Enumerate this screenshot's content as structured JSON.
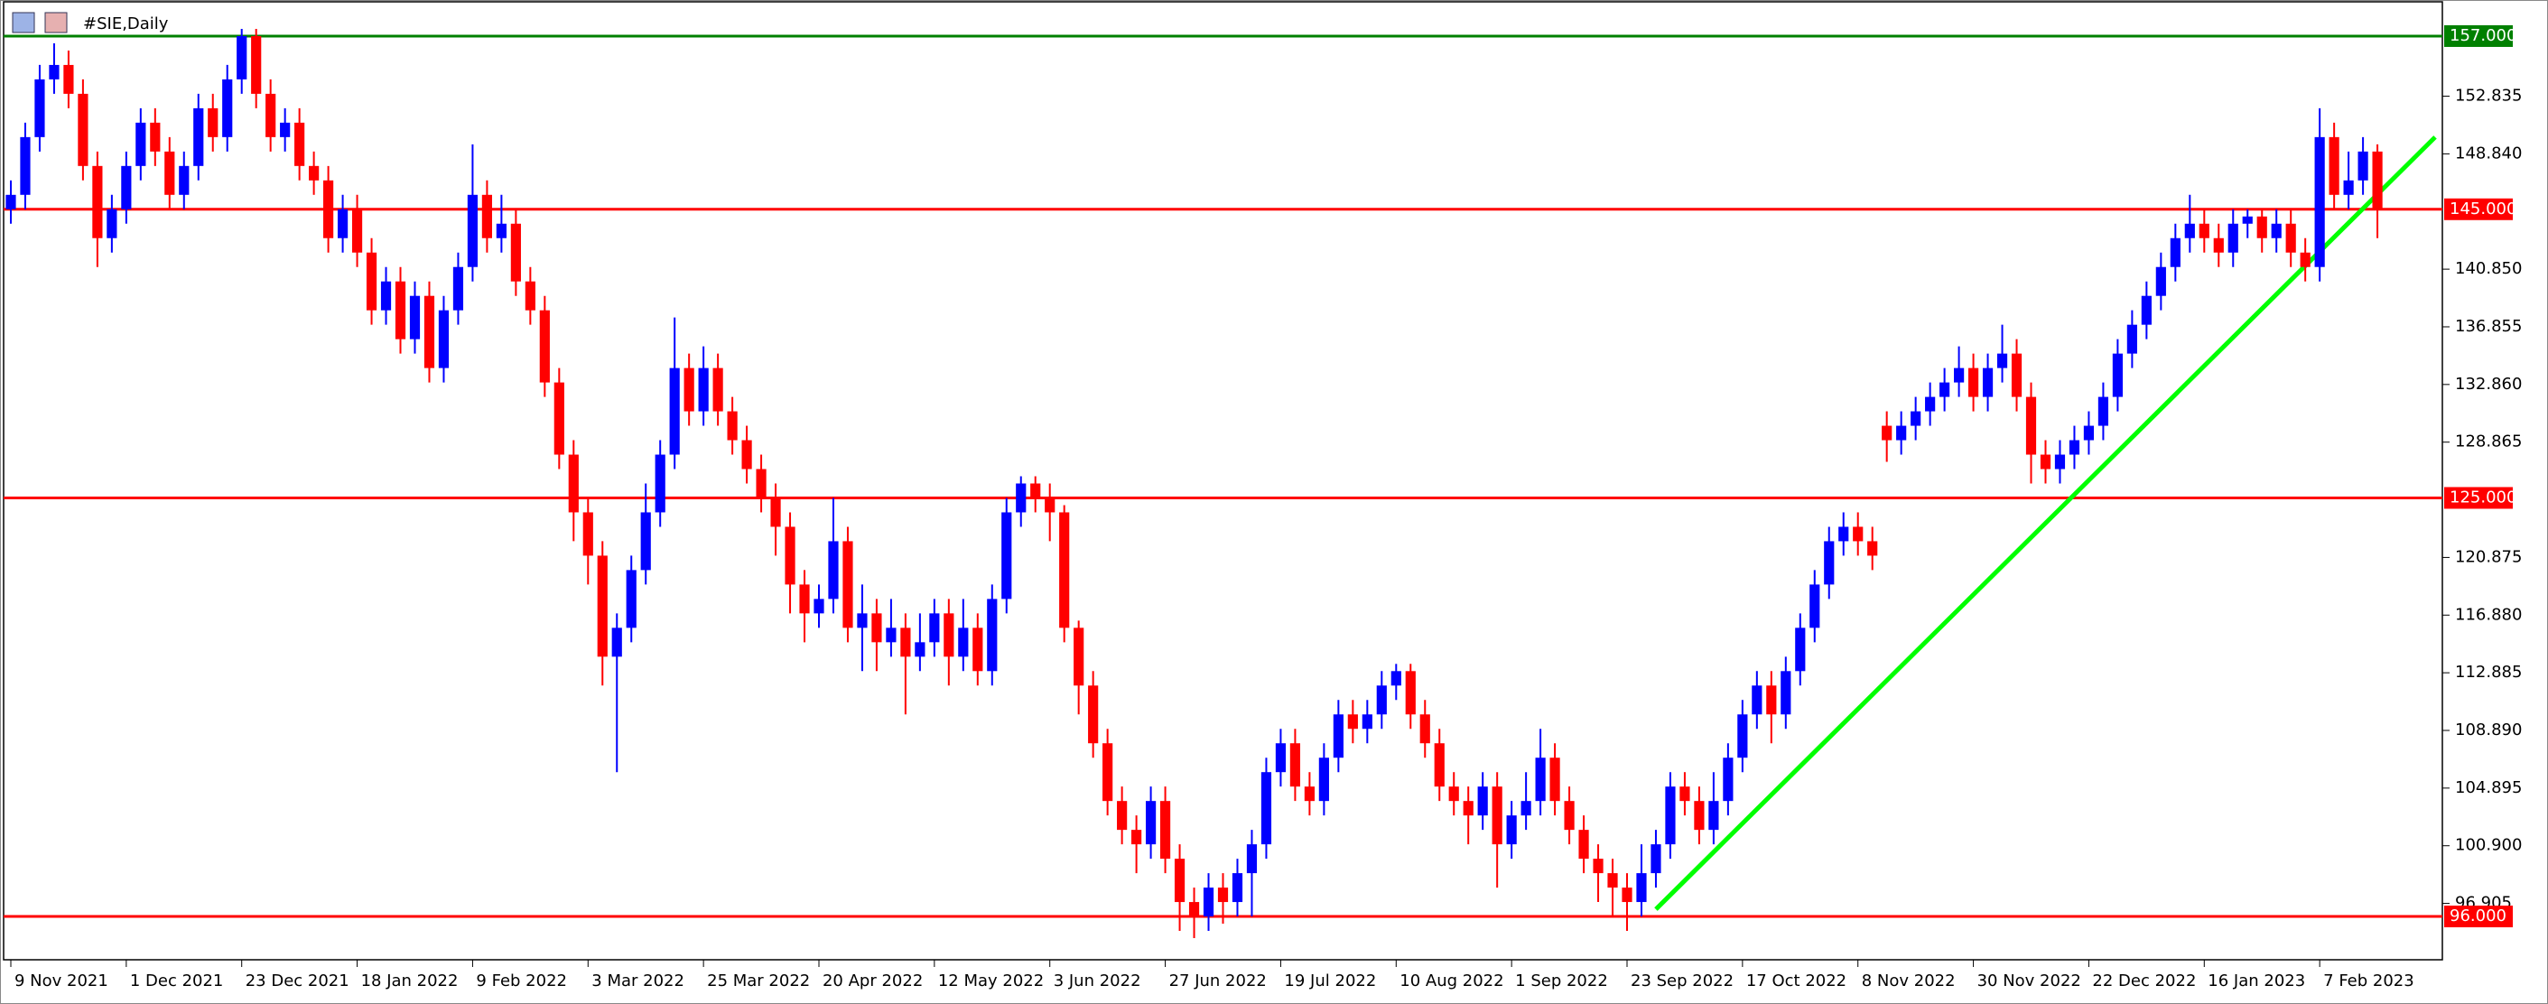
{
  "chart_data": {
    "type": "candlestick",
    "title": "#SIE,Daily",
    "up_color": "#0000ff",
    "down_color": "#ff0000",
    "xlim": [
      -0.5,
      168.5
    ],
    "ylim": [
      93,
      159.5
    ],
    "yticks": [
      152.835,
      {
        "value": 148.84,
        "label": "148.840"
      },
      {
        "value": 140.85,
        "label": "140.850"
      },
      136.855,
      {
        "value": 132.86,
        "label": "132.860"
      },
      128.865,
      120.875,
      {
        "value": 116.88,
        "label": "116.880"
      },
      112.885,
      {
        "value": 108.89,
        "label": "108.890"
      },
      104.895,
      {
        "value": 100.9,
        "label": "100.900"
      },
      96.905
    ],
    "levels": [
      {
        "value": 157,
        "label": "157.000",
        "color": "#008000"
      },
      {
        "value": 145,
        "label": "145.000",
        "color": "#ff0000"
      },
      {
        "value": 125,
        "label": "125.000",
        "color": "#ff0000"
      },
      {
        "value": 96,
        "label": "96.000",
        "color": "#ff0000"
      }
    ],
    "trendline": {
      "color": "#00ff00",
      "points": [
        [
          114,
          96.5
        ],
        [
          168,
          150
        ]
      ]
    },
    "categories": [
      "9 Nov 2021",
      null,
      null,
      null,
      null,
      null,
      null,
      null,
      "1 Dec 2021",
      null,
      null,
      null,
      null,
      null,
      null,
      null,
      "23 Dec 2021",
      null,
      null,
      null,
      null,
      null,
      null,
      null,
      "18 Jan 2022",
      null,
      null,
      null,
      null,
      null,
      null,
      null,
      "9 Feb 2022",
      null,
      null,
      null,
      null,
      null,
      null,
      null,
      "3 Mar 2022",
      null,
      null,
      null,
      null,
      null,
      null,
      null,
      "25 Mar 2022",
      null,
      null,
      null,
      null,
      null,
      null,
      null,
      "20 Apr 2022",
      null,
      null,
      null,
      null,
      null,
      null,
      null,
      "12 May 2022",
      null,
      null,
      null,
      null,
      null,
      null,
      null,
      "3 Jun 2022",
      null,
      null,
      null,
      null,
      null,
      null,
      null,
      "27 Jun 2022",
      null,
      null,
      null,
      null,
      null,
      null,
      null,
      "19 Jul 2022",
      null,
      null,
      null,
      null,
      null,
      null,
      null,
      "10 Aug 2022",
      null,
      null,
      null,
      null,
      null,
      null,
      null,
      "1 Sep 2022",
      null,
      null,
      null,
      null,
      null,
      null,
      null,
      "23 Sep 2022",
      null,
      null,
      null,
      null,
      null,
      null,
      null,
      "17 Oct 2022",
      null,
      null,
      null,
      null,
      null,
      null,
      null,
      "8 Nov 2022",
      null,
      null,
      null,
      null,
      null,
      null,
      null,
      "30 Nov 2022",
      null,
      null,
      null,
      null,
      null,
      null,
      null,
      "22 Dec 2022",
      null,
      null,
      null,
      null,
      null,
      null,
      null,
      "16 Jan 2023",
      null,
      null,
      null,
      null,
      null,
      null,
      null,
      "7 Feb 2023",
      null,
      null,
      null,
      null
    ],
    "ohlc": [
      [
        145,
        147,
        144,
        146
      ],
      [
        146,
        151,
        145,
        150
      ],
      [
        150,
        155,
        149,
        154
      ],
      [
        154,
        156.5,
        153,
        155
      ],
      [
        155,
        156,
        152,
        153
      ],
      [
        153,
        154,
        147,
        148
      ],
      [
        148,
        149,
        141,
        143
      ],
      [
        143,
        146,
        142,
        145
      ],
      [
        145,
        149,
        144,
        148
      ],
      [
        148,
        152,
        147,
        151
      ],
      [
        151,
        152,
        148,
        149
      ],
      [
        149,
        150,
        145,
        146
      ],
      [
        146,
        149,
        145,
        148
      ],
      [
        148,
        153,
        147,
        152
      ],
      [
        152,
        153,
        149,
        150
      ],
      [
        150,
        155,
        149,
        154
      ],
      [
        154,
        157.5,
        153,
        157
      ],
      [
        157,
        157.5,
        152,
        153
      ],
      [
        153,
        154,
        149,
        150
      ],
      [
        150,
        152,
        149,
        151
      ],
      [
        151,
        152,
        147,
        148
      ],
      [
        148,
        149,
        146,
        147
      ],
      [
        147,
        148,
        142,
        143
      ],
      [
        143,
        146,
        142,
        145
      ],
      [
        145,
        146,
        141,
        142
      ],
      [
        142,
        143,
        137,
        138
      ],
      [
        138,
        141,
        137,
        140
      ],
      [
        140,
        141,
        135,
        136
      ],
      [
        136,
        140,
        135,
        139
      ],
      [
        139,
        140,
        133,
        134
      ],
      [
        134,
        139,
        133,
        138
      ],
      [
        138,
        142,
        137,
        141
      ],
      [
        141,
        149.5,
        140,
        146
      ],
      [
        146,
        147,
        142,
        143
      ],
      [
        143,
        146,
        142,
        144
      ],
      [
        144,
        145,
        139,
        140
      ],
      [
        140,
        141,
        137,
        138
      ],
      [
        138,
        139,
        132,
        133
      ],
      [
        133,
        134,
        127,
        128
      ],
      [
        128,
        129,
        122,
        124
      ],
      [
        124,
        125,
        119,
        121
      ],
      [
        121,
        122,
        112,
        114
      ],
      [
        114,
        117,
        106,
        116
      ],
      [
        116,
        121,
        115,
        120
      ],
      [
        120,
        126,
        119,
        124
      ],
      [
        124,
        129,
        123,
        128
      ],
      [
        128,
        137.5,
        127,
        134
      ],
      [
        134,
        135,
        130,
        131
      ],
      [
        131,
        135.5,
        130,
        134
      ],
      [
        134,
        135,
        130,
        131
      ],
      [
        131,
        132,
        128,
        129
      ],
      [
        129,
        130,
        126,
        127
      ],
      [
        127,
        128,
        124,
        125
      ],
      [
        125,
        126,
        121,
        123
      ],
      [
        123,
        124,
        117,
        119
      ],
      [
        119,
        120,
        115,
        117
      ],
      [
        117,
        119,
        116,
        118
      ],
      [
        118,
        125,
        117,
        122
      ],
      [
        122,
        123,
        115,
        116
      ],
      [
        116,
        119,
        113,
        117
      ],
      [
        117,
        118,
        113,
        115
      ],
      [
        115,
        118,
        114,
        116
      ],
      [
        116,
        117,
        110,
        114
      ],
      [
        114,
        117,
        113,
        115
      ],
      [
        115,
        118,
        114,
        117
      ],
      [
        117,
        118,
        112,
        114
      ],
      [
        114,
        118,
        113,
        116
      ],
      [
        116,
        117,
        112,
        113
      ],
      [
        113,
        119,
        112,
        118
      ],
      [
        118,
        125,
        117,
        124
      ],
      [
        124,
        126.5,
        123,
        126
      ],
      [
        126,
        126.5,
        124,
        125
      ],
      [
        125,
        126,
        122,
        124
      ],
      [
        124,
        124.5,
        115,
        116
      ],
      [
        116,
        116.5,
        110,
        112
      ],
      [
        112,
        113,
        107,
        108
      ],
      [
        108,
        109,
        103,
        104
      ],
      [
        104,
        105,
        101,
        102
      ],
      [
        102,
        103,
        99,
        101
      ],
      [
        101,
        105,
        100,
        104
      ],
      [
        104,
        105,
        99,
        100
      ],
      [
        100,
        101,
        95,
        97
      ],
      [
        97,
        98,
        94.5,
        96
      ],
      [
        96,
        99,
        95,
        98
      ],
      [
        98,
        99,
        95.5,
        97
      ],
      [
        97,
        100,
        96,
        99
      ],
      [
        99,
        102,
        96,
        101
      ],
      [
        101,
        107,
        100,
        106
      ],
      [
        106,
        109,
        105,
        108
      ],
      [
        108,
        109,
        104,
        105
      ],
      [
        105,
        106,
        103,
        104
      ],
      [
        104,
        108,
        103,
        107
      ],
      [
        107,
        111,
        106,
        110
      ],
      [
        110,
        111,
        108,
        109
      ],
      [
        109,
        111,
        108,
        110
      ],
      [
        110,
        113,
        109,
        112
      ],
      [
        112,
        113.5,
        111,
        113
      ],
      [
        113,
        113.5,
        109,
        110
      ],
      [
        110,
        111,
        107,
        108
      ],
      [
        108,
        109,
        104,
        105
      ],
      [
        105,
        106,
        103,
        104
      ],
      [
        104,
        105,
        101,
        103
      ],
      [
        103,
        106,
        102,
        105
      ],
      [
        105,
        106,
        98,
        101
      ],
      [
        101,
        104,
        100,
        103
      ],
      [
        103,
        106,
        102,
        104
      ],
      [
        104,
        109,
        103,
        107
      ],
      [
        107,
        108,
        103,
        104
      ],
      [
        104,
        105,
        101,
        102
      ],
      [
        102,
        103,
        99,
        100
      ],
      [
        100,
        101,
        97,
        99
      ],
      [
        99,
        100,
        96,
        98
      ],
      [
        98,
        99,
        95,
        97
      ],
      [
        97,
        101,
        96,
        99
      ],
      [
        99,
        102,
        98,
        101
      ],
      [
        101,
        106,
        100,
        105
      ],
      [
        105,
        106,
        103,
        104
      ],
      [
        104,
        105,
        101,
        102
      ],
      [
        102,
        106,
        101,
        104
      ],
      [
        104,
        108,
        103,
        107
      ],
      [
        107,
        111,
        106,
        110
      ],
      [
        110,
        113,
        109,
        112
      ],
      [
        112,
        113,
        108,
        110
      ],
      [
        110,
        114,
        109,
        113
      ],
      [
        113,
        117,
        112,
        116
      ],
      [
        116,
        120,
        115,
        119
      ],
      [
        119,
        123,
        118,
        122
      ],
      [
        122,
        124,
        121,
        123
      ],
      [
        123,
        124,
        121,
        122
      ],
      [
        122,
        123,
        120,
        121
      ],
      [
        130,
        131,
        127.5,
        129
      ],
      [
        129,
        131,
        128,
        130
      ],
      [
        130,
        132,
        129,
        131
      ],
      [
        131,
        133,
        130,
        132
      ],
      [
        132,
        134,
        131,
        133
      ],
      [
        133,
        135.5,
        132,
        134
      ],
      [
        134,
        135,
        131,
        132
      ],
      [
        132,
        135,
        131,
        134
      ],
      [
        134,
        137,
        133,
        135
      ],
      [
        135,
        136,
        131,
        132
      ],
      [
        132,
        133,
        126,
        128
      ],
      [
        128,
        129,
        126,
        127
      ],
      [
        127,
        129,
        126,
        128
      ],
      [
        128,
        130,
        127,
        129
      ],
      [
        129,
        131,
        128,
        130
      ],
      [
        130,
        133,
        129,
        132
      ],
      [
        132,
        136,
        131,
        135
      ],
      [
        135,
        138,
        134,
        137
      ],
      [
        137,
        140,
        136,
        139
      ],
      [
        139,
        142,
        138,
        141
      ],
      [
        141,
        144,
        140,
        143
      ],
      [
        143,
        146,
        142,
        144
      ],
      [
        144,
        145,
        142,
        143
      ],
      [
        143,
        144,
        141,
        142
      ],
      [
        142,
        145,
        141,
        144
      ],
      [
        144,
        145,
        143,
        144.5
      ],
      [
        144.5,
        145,
        142,
        143
      ],
      [
        143,
        145,
        142,
        144
      ],
      [
        144,
        145,
        141,
        142
      ],
      [
        142,
        143,
        140,
        141
      ],
      [
        141,
        152,
        140,
        150
      ],
      [
        150,
        151,
        145,
        146
      ],
      [
        146,
        149,
        145,
        147
      ],
      [
        147,
        150,
        146,
        149
      ],
      [
        149,
        149.5,
        143,
        145
      ]
    ]
  }
}
